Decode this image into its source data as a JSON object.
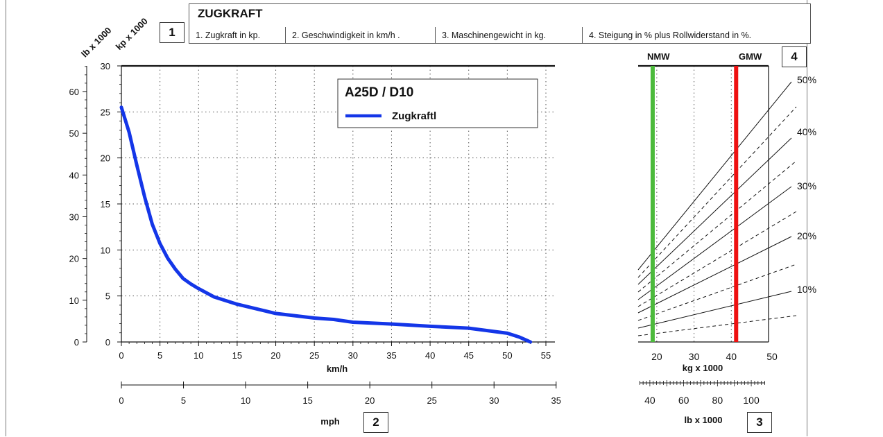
{
  "header": {
    "title": "ZUGKRAFT",
    "items": [
      "1. Zugkraft in kp.",
      "2. Geschwindigkeit in km/h .",
      "3. Maschinengewicht in kg.",
      "4. Steigung in % plus Rollwiderstand in %."
    ],
    "box_numbers": [
      "1",
      "2",
      "3",
      "4"
    ]
  },
  "chart_data": [
    {
      "type": "line",
      "title": "A25D / D10",
      "xlabel": "km/h",
      "ylabel_primary": "kp x 1000",
      "ylabel_secondary": "lb x 1000",
      "xlim": [
        0,
        55
      ],
      "ylim": [
        0,
        30
      ],
      "x_ticks": [
        0,
        5,
        10,
        15,
        20,
        25,
        30,
        35,
        40,
        45,
        50,
        55
      ],
      "y_ticks": [
        0,
        5,
        10,
        15,
        20,
        25,
        30
      ],
      "y_secondary_ticks": [
        0,
        10,
        20,
        30,
        40,
        50,
        60
      ],
      "secondary_xlabel": "mph",
      "x_secondary_ticks": [
        0,
        5,
        10,
        15,
        20,
        25,
        30,
        35
      ],
      "grid": true,
      "legend_position": "top-right",
      "colors": {
        "series": "#1436e8"
      },
      "series": [
        {
          "name": "Zugkraftl",
          "x": [
            0,
            1,
            2,
            3,
            4,
            5,
            6,
            7,
            8,
            9,
            10,
            12,
            15,
            20,
            25,
            27.5,
            30,
            35,
            40,
            45,
            50,
            51.5,
            53
          ],
          "values": [
            25.5,
            22.8,
            19.2,
            15.8,
            12.8,
            10.7,
            9.1,
            7.9,
            6.9,
            6.3,
            5.8,
            4.9,
            4.1,
            3.1,
            2.6,
            2.45,
            2.15,
            1.95,
            1.7,
            1.5,
            0.95,
            0.55,
            0.0
          ]
        }
      ]
    },
    {
      "type": "line",
      "xlabel": "kg x 1000",
      "secondary_xlabel": "lb x 1000",
      "xlim": [
        15,
        50
      ],
      "x_ticks": [
        20,
        30,
        40,
        50
      ],
      "x_secondary_ticks": [
        40,
        60,
        80,
        100
      ],
      "grade_labels": [
        "50%",
        "40%",
        "30%",
        "20%",
        "10%"
      ],
      "markers": [
        {
          "label": "NMW",
          "kg_x1000": 18.9,
          "color": "#4cba3c"
        },
        {
          "label": "GMW",
          "kg_x1000": 41.3,
          "color": "#ee1111"
        }
      ]
    }
  ]
}
